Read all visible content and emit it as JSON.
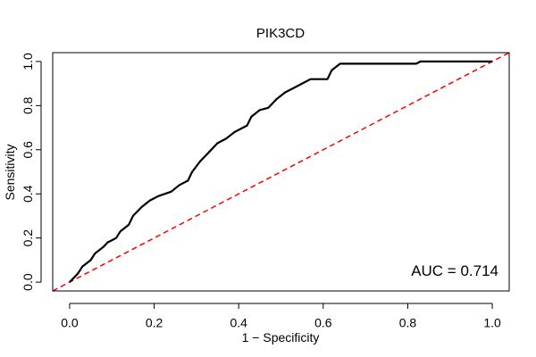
{
  "chart_data": {
    "type": "line",
    "title": "PIK3CD",
    "xlabel": "1 − Specificity",
    "ylabel": "Sensitivity",
    "xlim": [
      -0.04,
      1.04
    ],
    "ylim": [
      -0.04,
      1.04
    ],
    "x_ticks": [
      "0.0",
      "0.2",
      "0.4",
      "0.6",
      "0.8",
      "1.0"
    ],
    "y_ticks": [
      "0.0",
      "0.2",
      "0.4",
      "0.6",
      "0.8",
      "1.0"
    ],
    "grid": false,
    "annotation": "AUC = 0.714",
    "series": [
      {
        "style": "solid",
        "color": "#000000",
        "x": [
          0.0,
          0.01,
          0.02,
          0.03,
          0.05,
          0.06,
          0.08,
          0.09,
          0.11,
          0.12,
          0.14,
          0.15,
          0.17,
          0.19,
          0.21,
          0.24,
          0.26,
          0.28,
          0.29,
          0.31,
          0.33,
          0.35,
          0.37,
          0.39,
          0.42,
          0.43,
          0.45,
          0.47,
          0.49,
          0.51,
          0.53,
          0.55,
          0.57,
          0.61,
          0.62,
          0.64,
          0.82,
          0.83,
          1.0
        ],
        "y": [
          0.0,
          0.02,
          0.04,
          0.07,
          0.1,
          0.13,
          0.16,
          0.18,
          0.2,
          0.23,
          0.26,
          0.3,
          0.34,
          0.37,
          0.39,
          0.41,
          0.44,
          0.46,
          0.5,
          0.55,
          0.59,
          0.63,
          0.65,
          0.68,
          0.71,
          0.75,
          0.78,
          0.79,
          0.83,
          0.86,
          0.88,
          0.9,
          0.92,
          0.92,
          0.96,
          0.99,
          0.99,
          1.0,
          1.0
        ]
      },
      {
        "style": "dashed",
        "color": "#ff0000",
        "x": [
          -0.04,
          1.04
        ],
        "y": [
          -0.04,
          1.04
        ]
      }
    ]
  }
}
